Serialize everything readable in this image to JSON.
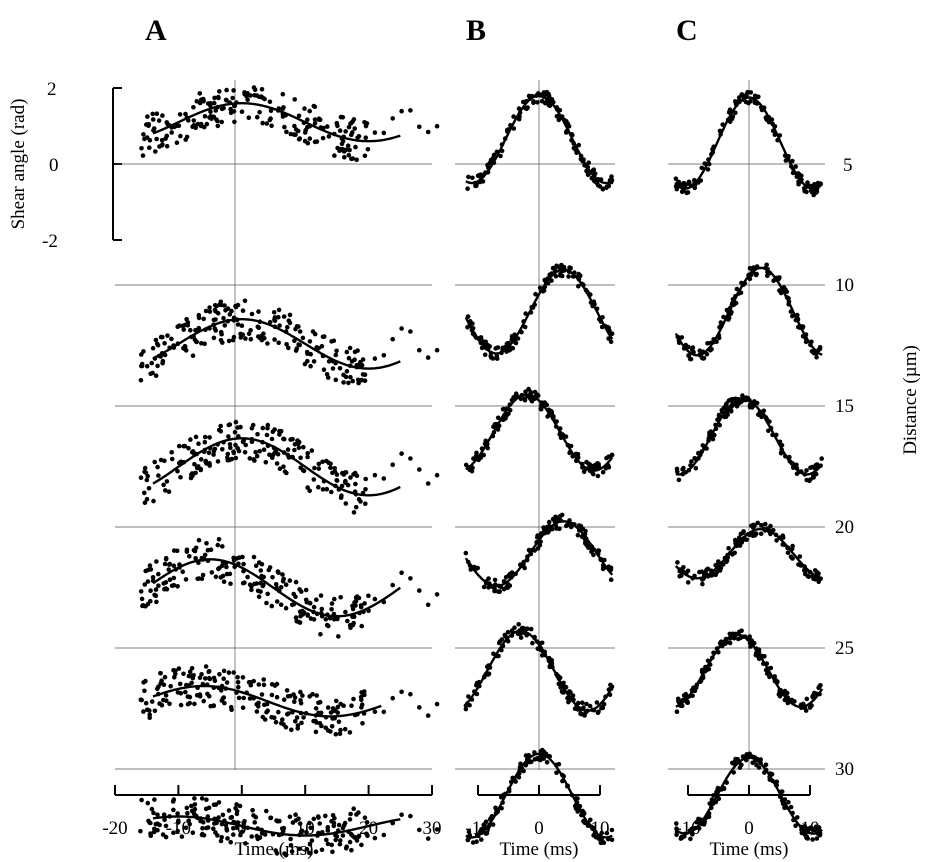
{
  "chart_data": {
    "type": "scatter",
    "panels": [
      "A",
      "B",
      "C"
    ],
    "xlabel": "Time (ms)",
    "ylabel": "Shear angle (rad)",
    "y2label": "Distance (µm)",
    "shear_ticks": [
      "2",
      "0",
      "-2"
    ],
    "distance_ticks": [
      "5",
      "10",
      "15",
      "20",
      "25",
      "30"
    ],
    "xticks": {
      "A": [
        "-20",
        "-10",
        "0",
        "10",
        "20",
        "30"
      ],
      "B": [
        "-10",
        "0",
        "10"
      ],
      "C": [
        "-10",
        "0",
        "10"
      ]
    },
    "xlim": {
      "A": [
        -20,
        30
      ],
      "B": [
        -10,
        10
      ],
      "C": [
        -10,
        10
      ]
    },
    "shear_ylim": [
      -2,
      2
    ],
    "distance_um": [
      5,
      10,
      15,
      20,
      25,
      30
    ],
    "fits": {
      "A": [
        {
          "distance": 5,
          "baseline": 1.1,
          "amp": 0.5,
          "period": 40,
          "phase": 0,
          "xmax": 25
        },
        {
          "distance": 10,
          "baseline": -1.55,
          "amp": 0.65,
          "period": 40,
          "phase": 0,
          "xmax": 25
        },
        {
          "distance": 15,
          "baseline": -1.6,
          "amp": 0.75,
          "period": 40,
          "phase": 0,
          "xmax": 25
        },
        {
          "distance": 20,
          "baseline": -1.6,
          "amp": 0.75,
          "period": 40,
          "phase": -5,
          "xmax": 25
        },
        {
          "distance": 25,
          "baseline": -1.4,
          "amp": 0.4,
          "period": 40,
          "phase": -6,
          "xmax": 22
        },
        {
          "distance": 30,
          "baseline": -1.5,
          "amp": 0.25,
          "period": 40,
          "phase": -10,
          "xmax": 25
        }
      ],
      "B": [
        {
          "distance": 5,
          "baseline": 0.65,
          "amp": 1.15,
          "period": 22,
          "phase": 0,
          "xmax": 12
        },
        {
          "distance": 10,
          "baseline": -0.7,
          "amp": 1.1,
          "period": 22,
          "phase": 4,
          "xmax": 12
        },
        {
          "distance": 15,
          "baseline": -0.7,
          "amp": 1.0,
          "period": 22,
          "phase": -2,
          "xmax": 12
        },
        {
          "distance": 20,
          "baseline": -0.7,
          "amp": 0.85,
          "period": 22,
          "phase": 4,
          "xmax": 12
        },
        {
          "distance": 25,
          "baseline": -0.6,
          "amp": 1.05,
          "period": 22,
          "phase": -3,
          "xmax": 12
        },
        {
          "distance": 30,
          "baseline": -0.7,
          "amp": 1.1,
          "period": 22,
          "phase": 0,
          "xmax": 12
        }
      ],
      "C": [
        {
          "distance": 5,
          "baseline": 0.55,
          "amp": 1.2,
          "period": 21,
          "phase": 0,
          "xmax": 12
        },
        {
          "distance": 10,
          "baseline": -0.7,
          "amp": 1.15,
          "period": 21,
          "phase": 2,
          "xmax": 12
        },
        {
          "distance": 15,
          "baseline": -0.8,
          "amp": 1.0,
          "period": 21,
          "phase": -1,
          "xmax": 12
        },
        {
          "distance": 20,
          "baseline": -0.7,
          "amp": 0.65,
          "period": 21,
          "phase": 2,
          "xmax": 12
        },
        {
          "distance": 25,
          "baseline": -0.6,
          "amp": 0.95,
          "period": 21,
          "phase": -2,
          "xmax": 12
        },
        {
          "distance": 30,
          "baseline": -0.7,
          "amp": 1.0,
          "period": 21,
          "phase": 0,
          "xmax": 12
        }
      ]
    },
    "grid": "zero lines dotted"
  }
}
